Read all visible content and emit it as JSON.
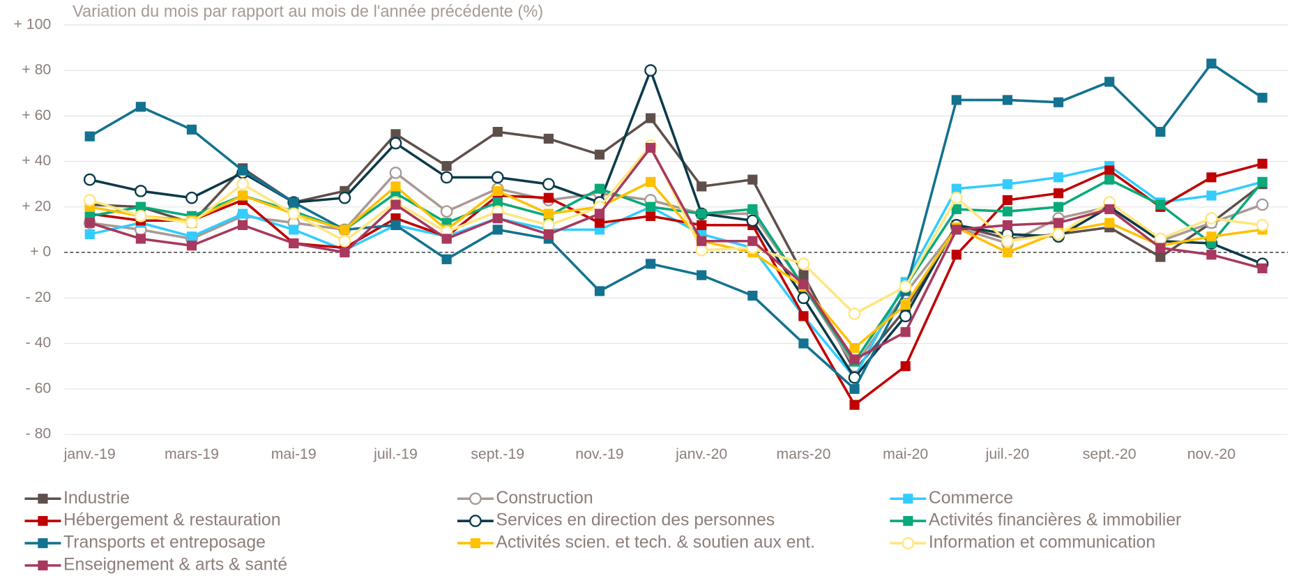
{
  "chart_data": {
    "type": "line",
    "title": "Variation du mois par rapport au mois de l'année précédente (%)",
    "categories": [
      "janv.-19",
      null,
      "mars-19",
      null,
      "mai-19",
      null,
      "juil.-19",
      null,
      "sept.-19",
      null,
      "nov.-19",
      null,
      "janv.-20",
      null,
      "mars-20",
      null,
      "mai-20",
      null,
      "juil.-20",
      null,
      "sept.-20",
      null,
      "nov.-20",
      null
    ],
    "ylim": [
      -80,
      100
    ],
    "yticks": [
      {
        "value": -80,
        "label": "- 80"
      },
      {
        "value": -60,
        "label": "- 60"
      },
      {
        "value": -40,
        "label": "- 40"
      },
      {
        "value": -20,
        "label": "- 20"
      },
      {
        "value": 0,
        "label": "+ 0"
      },
      {
        "value": 20,
        "label": "+ 20"
      },
      {
        "value": 40,
        "label": "+ 40"
      },
      {
        "value": 60,
        "label": "+ 60"
      },
      {
        "value": 80,
        "label": "+ 80"
      },
      {
        "value": 100,
        "label": "+ 100"
      }
    ],
    "grid": true,
    "series": [
      {
        "name": "Industrie",
        "color": "#5e4f4b",
        "marker": "square",
        "values": [
          21,
          20,
          13,
          37,
          22,
          27,
          52,
          38,
          53,
          50,
          43,
          59,
          29,
          32,
          -10,
          -52,
          -25,
          12,
          6,
          8,
          11,
          -2,
          13,
          30
        ]
      },
      {
        "name": "Construction",
        "color": "#a89a95",
        "marker": "circle",
        "values": [
          13,
          10,
          6,
          16,
          13,
          10,
          35,
          18,
          28,
          23,
          26,
          23,
          17,
          17,
          -15,
          -50,
          -18,
          11,
          4,
          15,
          20,
          5,
          13,
          21
        ]
      },
      {
        "name": "Commerce",
        "color": "#33ccff",
        "marker": "square",
        "values": [
          8,
          13,
          7,
          17,
          10,
          1,
          12,
          7,
          15,
          10,
          10,
          20,
          8,
          2,
          -28,
          -55,
          -13,
          28,
          30,
          33,
          38,
          22,
          25,
          31
        ]
      },
      {
        "name": "Hébergement & restauration",
        "color": "#c00000",
        "marker": "square",
        "values": [
          17,
          14,
          14,
          23,
          4,
          2,
          15,
          7,
          25,
          24,
          13,
          16,
          12,
          12,
          -28,
          -67,
          -50,
          -1,
          23,
          26,
          36,
          20,
          33,
          39
        ]
      },
      {
        "name": "Services en direction des personnes",
        "color": "#0b3a4a",
        "marker": "circle",
        "values": [
          32,
          27,
          24,
          35,
          22,
          24,
          48,
          33,
          33,
          30,
          22,
          80,
          17,
          14,
          -20,
          -55,
          -28,
          12,
          8,
          7,
          20,
          5,
          4,
          -5
        ]
      },
      {
        "name": "Activités financières & immobilier",
        "color": "#0aa97a",
        "marker": "square",
        "values": [
          16,
          20,
          16,
          25,
          18,
          10,
          26,
          13,
          22,
          16,
          28,
          20,
          17,
          19,
          -15,
          -48,
          -15,
          19,
          18,
          20,
          32,
          21,
          4,
          31
        ]
      },
      {
        "name": "Transports et entreposage",
        "color": "#12728f",
        "marker": "square",
        "values": [
          51,
          64,
          54,
          36,
          22,
          10,
          12,
          -3,
          10,
          6,
          -17,
          -5,
          -10,
          -19,
          -40,
          -60,
          -17,
          67,
          67,
          66,
          75,
          53,
          83,
          68
        ]
      },
      {
        "name": "Activités scien. et tech. & soutien aux ent.",
        "color": "#ffc000",
        "marker": "square",
        "values": [
          20,
          16,
          14,
          25,
          17,
          10,
          29,
          10,
          27,
          17,
          20,
          31,
          5,
          0,
          -15,
          -42,
          -23,
          11,
          0,
          9,
          13,
          3,
          7,
          10
        ]
      },
      {
        "name": "Information et communication",
        "color": "#ffe680",
        "marker": "circle",
        "values": [
          23,
          16,
          13,
          30,
          17,
          5,
          22,
          9,
          18,
          12,
          20,
          47,
          1,
          2,
          -5,
          -27,
          -15,
          24,
          5,
          8,
          22,
          6,
          15,
          12
        ]
      },
      {
        "name": "Enseignement & arts & santé",
        "color": "#a8385e",
        "marker": "square",
        "values": [
          13,
          6,
          3,
          12,
          4,
          0,
          21,
          6,
          15,
          8,
          17,
          46,
          5,
          5,
          -14,
          -47,
          -35,
          10,
          12,
          13,
          19,
          2,
          -1,
          -7
        ]
      }
    ]
  }
}
